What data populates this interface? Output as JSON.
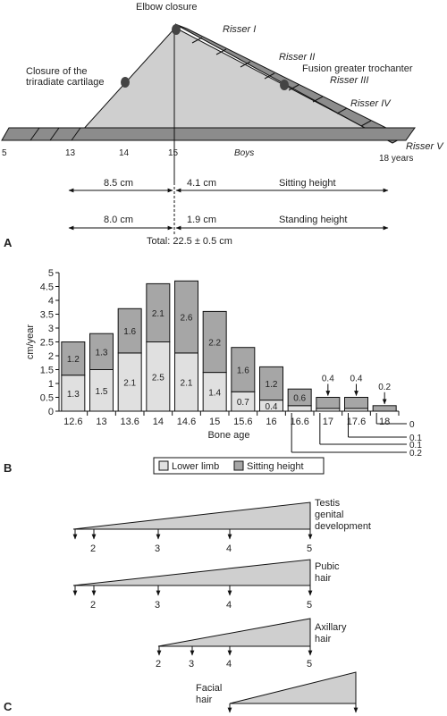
{
  "panel_a": {
    "label": "A",
    "elbow_closure": "Elbow closure",
    "triradiate_line1": "Closure of the",
    "triradiate_line2": "triradiate cartilage",
    "risser_labels": [
      "Risser I",
      "Risser II",
      "Risser III",
      "Risser IV",
      "Risser V"
    ],
    "fusion_label": "Fusion greater trochanter",
    "axis_ticks": [
      "5",
      "13",
      "14",
      "15",
      "18 years"
    ],
    "boys_label": "Boys",
    "sitting": {
      "before": "8.5 cm",
      "after": "4.1 cm",
      "label": "Sitting height"
    },
    "standing": {
      "before": "8.0 cm",
      "after": "1.9 cm",
      "label": "Standing height"
    },
    "total": "Total: 22.5 ± 0.5 cm"
  },
  "panel_b": {
    "label": "B",
    "ylabel": "cm/year",
    "xlabel": "Bone age",
    "legend": [
      "Lower limb",
      "Sitting height"
    ],
    "legend_colors": [
      "#e0e0e0",
      "#a6a6a6"
    ],
    "callout_values": [
      "0.4",
      "0.4",
      "0.2"
    ],
    "side_values": [
      "0",
      "0.1",
      "0.1",
      "0.2"
    ]
  },
  "chart_data": {
    "type": "bar",
    "stacked": true,
    "categories": [
      "12.6",
      "13",
      "13.6",
      "14",
      "14.6",
      "15",
      "15.6",
      "16",
      "16.6",
      "17",
      "17.6",
      "18"
    ],
    "series": [
      {
        "name": "Lower limb",
        "values": [
          1.3,
          1.5,
          2.1,
          2.5,
          2.1,
          1.4,
          0.7,
          0.4,
          0.2,
          0.1,
          0.1,
          0
        ]
      },
      {
        "name": "Sitting height",
        "values": [
          1.2,
          1.3,
          1.6,
          2.1,
          2.6,
          2.2,
          1.6,
          1.2,
          0.6,
          0.4,
          0.4,
          0.2
        ]
      }
    ],
    "data_labels_lower": [
      "1.3",
      "1.5",
      "2.1",
      "2.5",
      "2.1",
      "1.4",
      "0.7",
      "0.4",
      "",
      "",
      "",
      ""
    ],
    "data_labels_upper": [
      "1.2",
      "1.3",
      "1.6",
      "2.1",
      "2.6",
      "2.2",
      "1.6",
      "1.2",
      "0.6",
      "",
      "",
      ""
    ],
    "yticks": [
      "0",
      "0.5",
      "1",
      "1.5",
      "2",
      "2.5",
      "3",
      "3.5",
      "4",
      "4.5",
      "5"
    ],
    "ylim": [
      0,
      5
    ],
    "xlabel": "Bone age",
    "ylabel": "cm/year",
    "legend_position": "bottom"
  },
  "panel_c": {
    "label": "C",
    "rows": [
      {
        "lines": [
          "Testis",
          "genital",
          "development"
        ],
        "ticks": [
          "2",
          "3",
          "4",
          "5"
        ]
      },
      {
        "lines": [
          "Pubic",
          "hair"
        ],
        "ticks": [
          "2",
          "3",
          "4",
          "5"
        ]
      },
      {
        "lines": [
          "Axillary",
          "hair"
        ],
        "ticks": [
          "2",
          "3",
          "4",
          "5"
        ]
      },
      {
        "lines": [
          "Facial",
          "hair"
        ],
        "ticks": []
      }
    ]
  }
}
